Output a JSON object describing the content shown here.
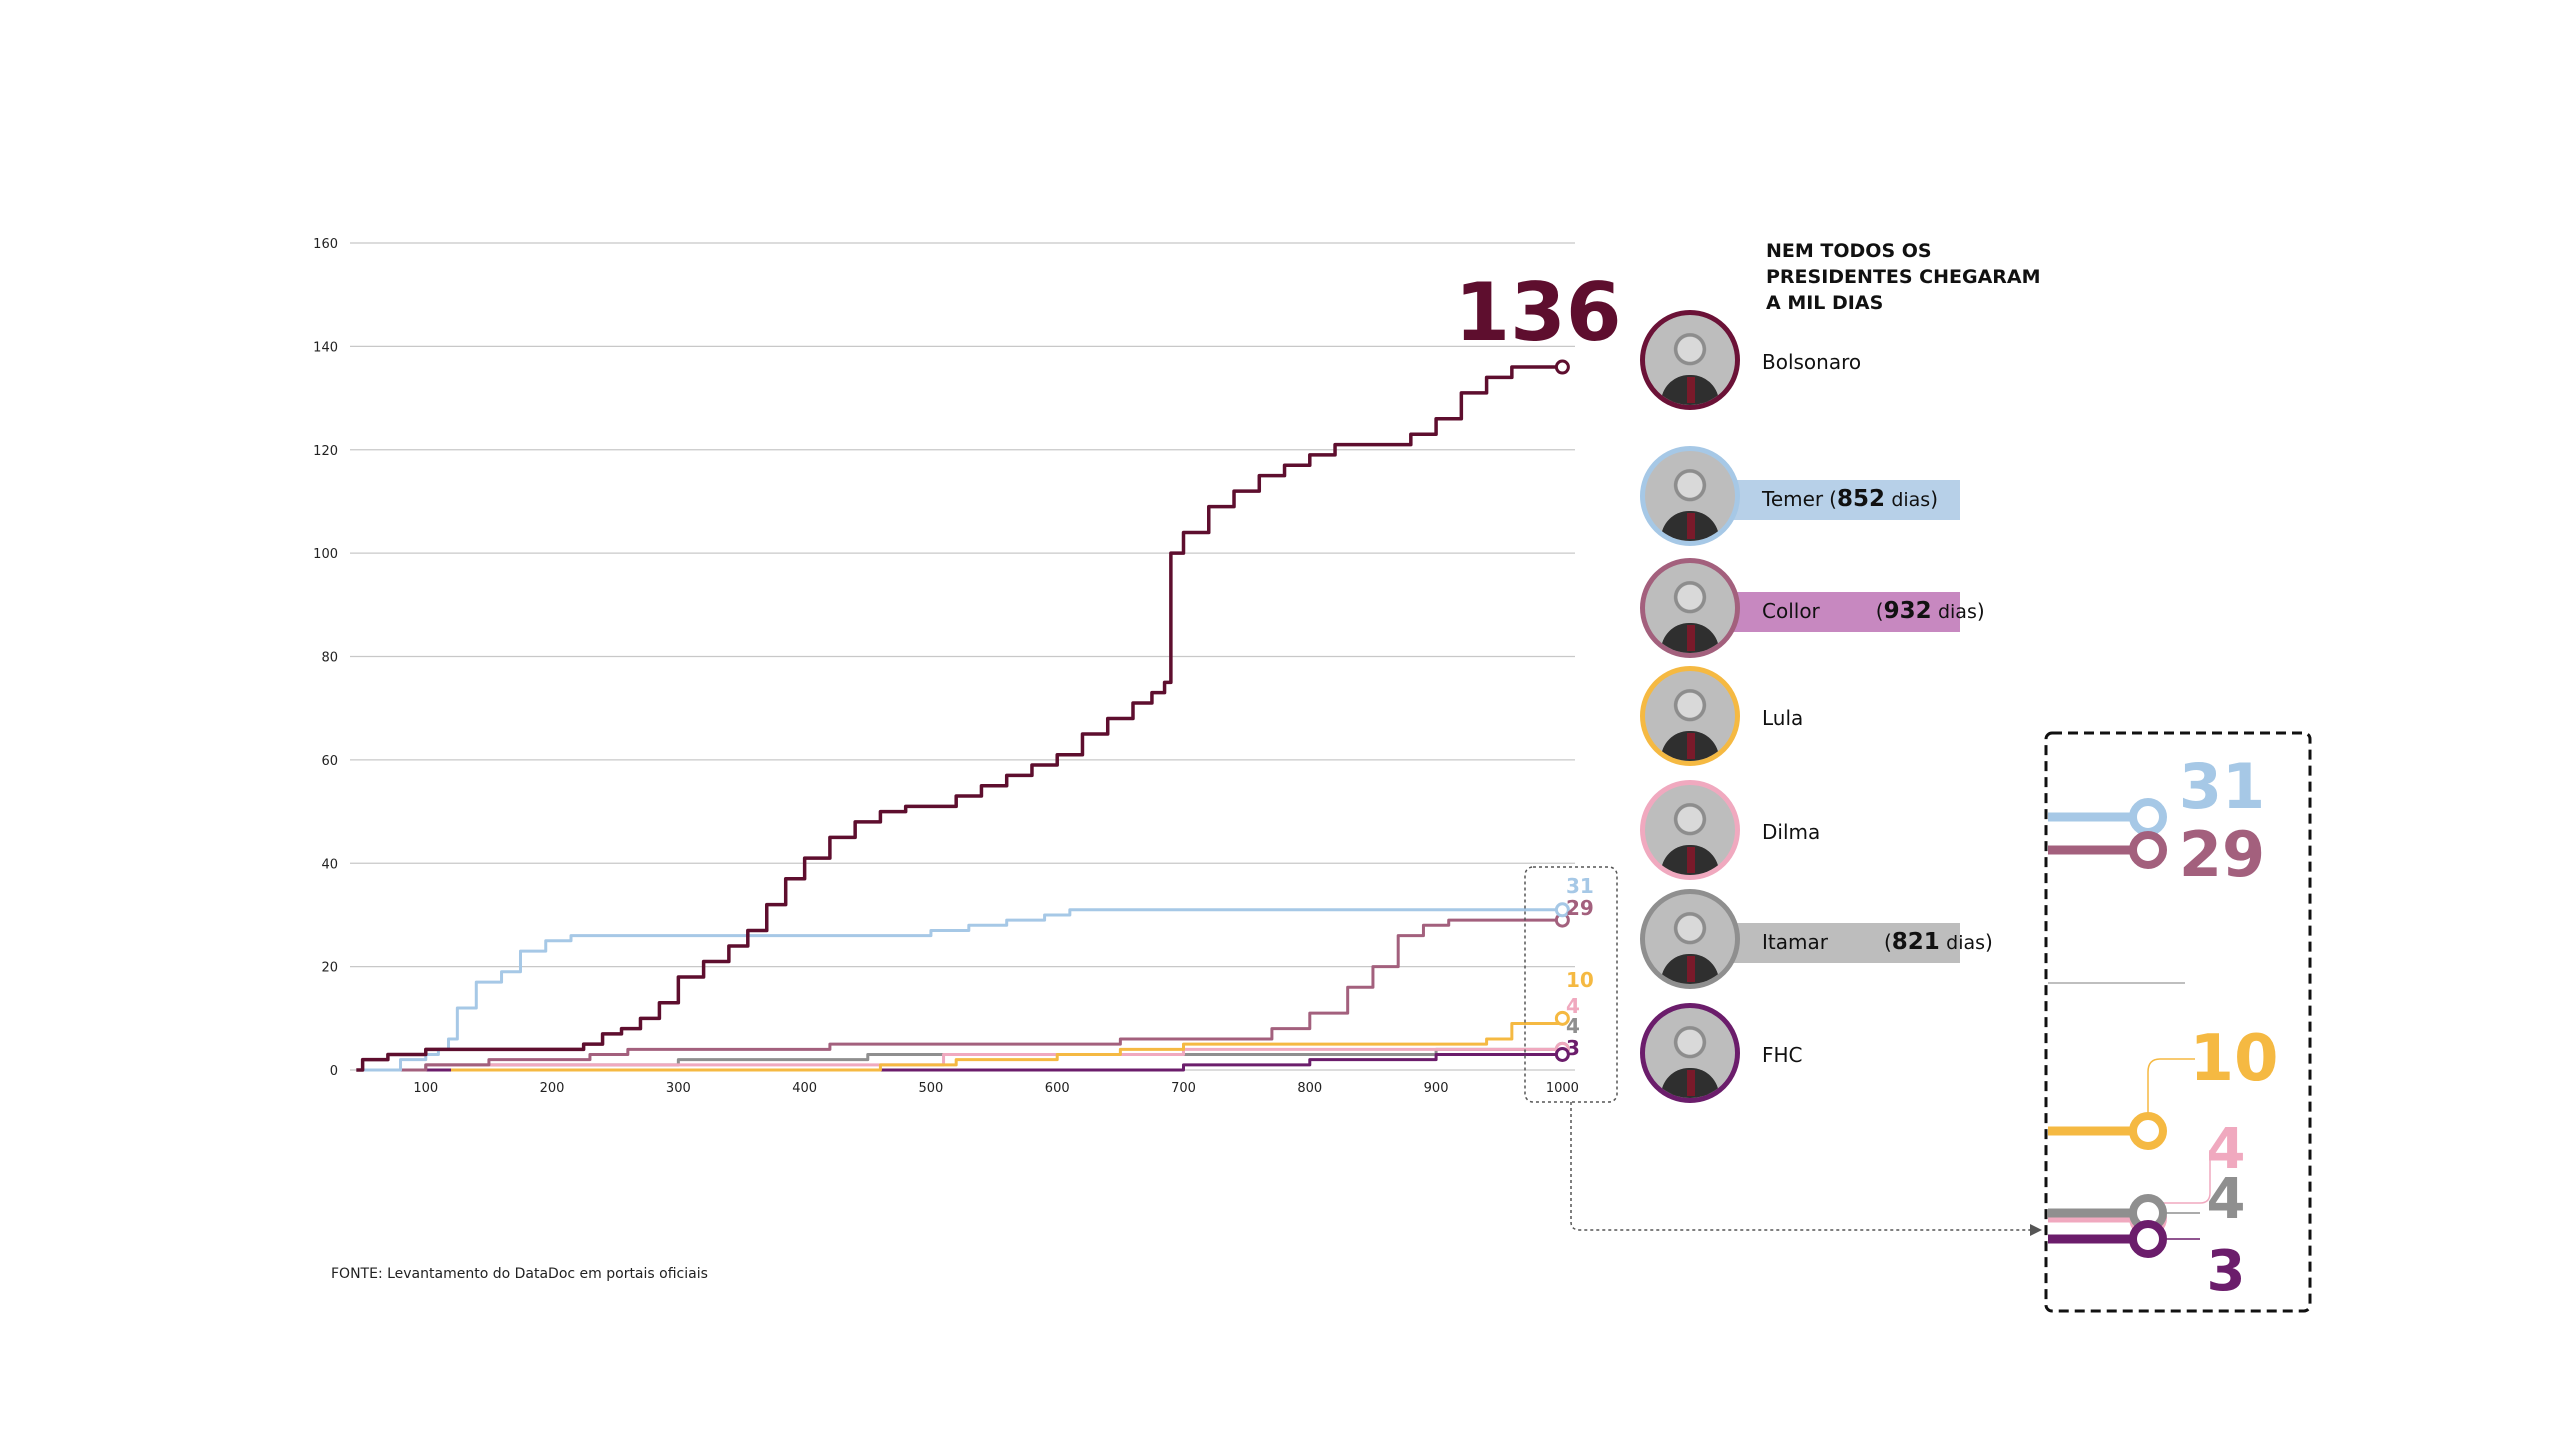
{
  "chart_data": {
    "type": "line",
    "title": "NEM TODOS OS PRESIDENTES CHEGARAM A MIL DIAS",
    "xlabel": "",
    "ylabel": "",
    "xlim": [
      40,
      1010
    ],
    "ylim": [
      0,
      160
    ],
    "grid": true,
    "x_ticks": [
      "100",
      "200",
      "300",
      "400",
      "500",
      "600",
      "700",
      "800",
      "900",
      "1000"
    ],
    "y_ticks": [
      "0",
      "20",
      "40",
      "60",
      "80",
      "100",
      "120",
      "140",
      "160"
    ],
    "series": [
      {
        "name": "Bolsonaro",
        "color": "#5e0e2e",
        "final": 136,
        "points": [
          [
            45,
            0
          ],
          [
            50,
            2
          ],
          [
            70,
            3
          ],
          [
            100,
            4
          ],
          [
            120,
            4
          ],
          [
            150,
            4
          ],
          [
            175,
            4
          ],
          [
            200,
            4
          ],
          [
            215,
            4
          ],
          [
            225,
            5
          ],
          [
            240,
            7
          ],
          [
            255,
            8
          ],
          [
            270,
            10
          ],
          [
            285,
            13
          ],
          [
            300,
            18
          ],
          [
            320,
            21
          ],
          [
            340,
            24
          ],
          [
            355,
            27
          ],
          [
            370,
            32
          ],
          [
            385,
            37
          ],
          [
            400,
            41
          ],
          [
            420,
            45
          ],
          [
            440,
            48
          ],
          [
            460,
            50
          ],
          [
            480,
            51
          ],
          [
            500,
            51
          ],
          [
            520,
            53
          ],
          [
            540,
            55
          ],
          [
            560,
            57
          ],
          [
            580,
            59
          ],
          [
            600,
            61
          ],
          [
            620,
            65
          ],
          [
            640,
            68
          ],
          [
            660,
            71
          ],
          [
            675,
            73
          ],
          [
            685,
            75
          ],
          [
            690,
            100
          ],
          [
            700,
            104
          ],
          [
            720,
            109
          ],
          [
            740,
            112
          ],
          [
            760,
            115
          ],
          [
            780,
            117
          ],
          [
            800,
            119
          ],
          [
            820,
            121
          ],
          [
            840,
            121
          ],
          [
            860,
            121
          ],
          [
            880,
            123
          ],
          [
            900,
            126
          ],
          [
            920,
            131
          ],
          [
            940,
            134
          ],
          [
            960,
            136
          ],
          [
            1000,
            136
          ]
        ]
      },
      {
        "name": "Temer",
        "color": "#a6c8e6",
        "final": 31,
        "days": "852",
        "points": [
          [
            50,
            0
          ],
          [
            80,
            2
          ],
          [
            100,
            3
          ],
          [
            110,
            4
          ],
          [
            118,
            6
          ],
          [
            125,
            12
          ],
          [
            140,
            17
          ],
          [
            160,
            19
          ],
          [
            175,
            23
          ],
          [
            195,
            25
          ],
          [
            215,
            26
          ],
          [
            250,
            26
          ],
          [
            300,
            26
          ],
          [
            400,
            26
          ],
          [
            460,
            26
          ],
          [
            480,
            26
          ],
          [
            500,
            27
          ],
          [
            530,
            28
          ],
          [
            560,
            29
          ],
          [
            590,
            30
          ],
          [
            610,
            31
          ],
          [
            700,
            31
          ],
          [
            800,
            31
          ],
          [
            900,
            31
          ],
          [
            1000,
            31
          ]
        ]
      },
      {
        "name": "Collor",
        "color": "#a3607d",
        "final": 29,
        "days": "932",
        "points": [
          [
            60,
            0
          ],
          [
            100,
            1
          ],
          [
            150,
            2
          ],
          [
            200,
            2
          ],
          [
            230,
            3
          ],
          [
            260,
            4
          ],
          [
            300,
            4
          ],
          [
            400,
            4
          ],
          [
            420,
            5
          ],
          [
            500,
            5
          ],
          [
            600,
            5
          ],
          [
            650,
            6
          ],
          [
            700,
            6
          ],
          [
            750,
            6
          ],
          [
            770,
            8
          ],
          [
            800,
            11
          ],
          [
            830,
            16
          ],
          [
            850,
            20
          ],
          [
            870,
            26
          ],
          [
            890,
            28
          ],
          [
            910,
            29
          ],
          [
            1000,
            29
          ]
        ]
      },
      {
        "name": "Lula",
        "color": "#f5b942",
        "final": 10,
        "points": [
          [
            120,
            0
          ],
          [
            200,
            0
          ],
          [
            300,
            0
          ],
          [
            400,
            0
          ],
          [
            460,
            1
          ],
          [
            520,
            2
          ],
          [
            600,
            3
          ],
          [
            650,
            4
          ],
          [
            700,
            5
          ],
          [
            800,
            5
          ],
          [
            900,
            5
          ],
          [
            940,
            6
          ],
          [
            960,
            9
          ],
          [
            1000,
            10
          ]
        ]
      },
      {
        "name": "Dilma",
        "color": "#f0a9bf",
        "final": 4,
        "points": [
          [
            100,
            1
          ],
          [
            200,
            1
          ],
          [
            300,
            1
          ],
          [
            400,
            1
          ],
          [
            480,
            1
          ],
          [
            510,
            3
          ],
          [
            600,
            3
          ],
          [
            700,
            4
          ],
          [
            800,
            4
          ],
          [
            900,
            4
          ],
          [
            1000,
            4
          ]
        ]
      },
      {
        "name": "Itamar",
        "color": "#8f8f8f",
        "final": 4,
        "days": "821",
        "points": [
          [
            70,
            0
          ],
          [
            100,
            1
          ],
          [
            150,
            1
          ],
          [
            200,
            1
          ],
          [
            250,
            1
          ],
          [
            300,
            2
          ],
          [
            400,
            2
          ],
          [
            450,
            3
          ],
          [
            550,
            3
          ],
          [
            600,
            3
          ],
          [
            700,
            3
          ],
          [
            800,
            3
          ],
          [
            900,
            4
          ],
          [
            1000,
            4
          ]
        ]
      },
      {
        "name": "FHC",
        "color": "#6b1d6b",
        "final": 3,
        "points": [
          [
            90,
            0
          ],
          [
            200,
            0
          ],
          [
            300,
            0
          ],
          [
            400,
            0
          ],
          [
            500,
            0
          ],
          [
            600,
            0
          ],
          [
            700,
            1
          ],
          [
            800,
            2
          ],
          [
            900,
            3
          ],
          [
            1000,
            3
          ]
        ]
      }
    ],
    "annotations": {
      "main_label": "136",
      "source": "FONTE: Levantamento do DataDoc em portais oficiais"
    }
  },
  "legend": {
    "title": "NEM TODOS OS PRESIDENTES CHEGARAM A MIL DIAS",
    "items": [
      {
        "name": "Bolsonaro",
        "border": "#6b1237",
        "bar": null,
        "days": null
      },
      {
        "name": "Temer",
        "border": "#a6c8e6",
        "bar": "#b7d0e8",
        "days": "852",
        "unit": "dias"
      },
      {
        "name": "Collor",
        "border": "#a3607d",
        "bar": "#c788c0",
        "days": "932",
        "unit": "dias"
      },
      {
        "name": "Lula",
        "border": "#f5b942",
        "bar": null,
        "days": null
      },
      {
        "name": "Dilma",
        "border": "#f0a9bf",
        "bar": null,
        "days": null
      },
      {
        "name": "Itamar",
        "border": "#8f8f8f",
        "bar": "#bdbdbd",
        "days": "821",
        "unit": "dias"
      },
      {
        "name": "FHC",
        "border": "#6b1d6b",
        "bar": null,
        "days": null
      }
    ]
  },
  "source": "FONTE: Levantamento do DataDoc em portais oficiais"
}
